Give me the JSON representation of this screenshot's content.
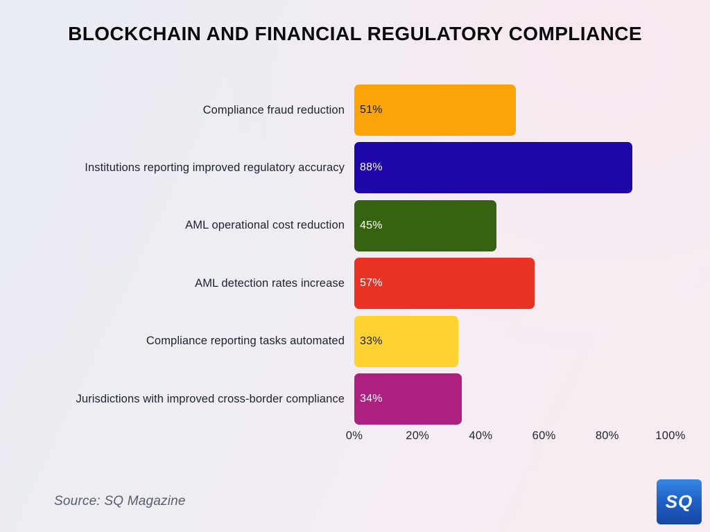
{
  "page": {
    "title": "BLOCKCHAIN AND FINANCIAL REGULATORY COMPLIANCE",
    "source": "Source: SQ Magazine",
    "logo_text": "SQ"
  },
  "colors": {
    "background_top_left": "#e8ecf4",
    "background_bottom_right": "#f6ecf2",
    "title_text": "#0b0b0d",
    "category_text": "#1e222b",
    "axis_text": "#22252c",
    "source_text": "#585d66",
    "logo_blue_top": "#3788e4",
    "logo_blue_bottom": "#1646a5"
  },
  "chart_data": {
    "type": "bar",
    "orientation": "horizontal",
    "title": "BLOCKCHAIN AND FINANCIAL REGULATORY COMPLIANCE",
    "categories": [
      "Compliance fraud reduction",
      "Institutions reporting improved regulatory accuracy",
      "AML operational cost reduction",
      "AML detection rates increase",
      "Compliance reporting tasks automated",
      "Jurisdictions with improved cross-border compliance"
    ],
    "values": [
      51,
      88,
      45,
      57,
      33,
      34
    ],
    "value_labels": [
      "51%",
      "88%",
      "45%",
      "57%",
      "33%",
      "34%"
    ],
    "bar_colors": [
      "#FBA307",
      "#1D07A8",
      "#366311",
      "#E93223",
      "#FED232",
      "#AC2080"
    ],
    "value_text_colors": [
      "#1c1c1c",
      "#ffffff",
      "#ffffff",
      "#ffffff",
      "#1c1c1c",
      "#ffffff"
    ],
    "xlabel": "",
    "ylabel": "",
    "xlim": [
      0,
      100
    ],
    "x_ticks": [
      "0%",
      "20%",
      "40%",
      "60%",
      "80%",
      "100%"
    ],
    "x_tick_values": [
      0,
      20,
      40,
      60,
      80,
      100
    ],
    "grid": false,
    "legend": false,
    "source": "Source: SQ Magazine"
  }
}
